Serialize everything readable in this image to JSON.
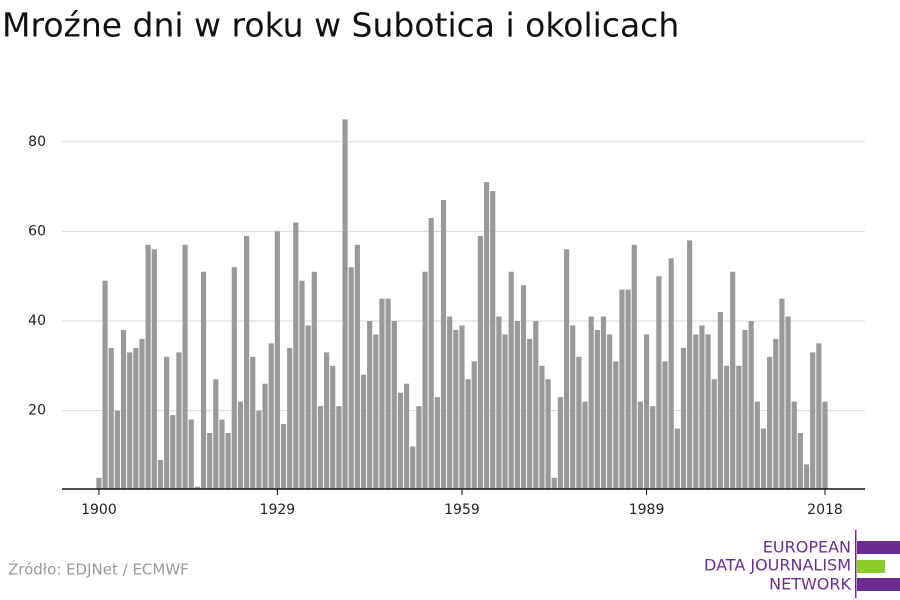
{
  "chart_data": {
    "type": "bar",
    "title": "Mroźne dni w roku w Subotica i okolicach",
    "source": "Źródło: EDJNet / ECMWF",
    "logo": [
      "EUROPEAN",
      "DATA JOURNALISM",
      "NETWORK"
    ],
    "color": "#999999",
    "x": [
      1900,
      1901,
      1902,
      1903,
      1904,
      1905,
      1906,
      1907,
      1908,
      1909,
      1910,
      1911,
      1912,
      1913,
      1914,
      1915,
      1916,
      1917,
      1918,
      1919,
      1920,
      1921,
      1922,
      1923,
      1924,
      1925,
      1926,
      1927,
      1928,
      1929,
      1930,
      1931,
      1932,
      1933,
      1934,
      1935,
      1936,
      1937,
      1938,
      1939,
      1940,
      1941,
      1942,
      1943,
      1944,
      1945,
      1946,
      1947,
      1948,
      1949,
      1950,
      1951,
      1952,
      1953,
      1954,
      1955,
      1956,
      1957,
      1958,
      1959,
      1960,
      1961,
      1962,
      1963,
      1964,
      1965,
      1966,
      1967,
      1968,
      1969,
      1970,
      1971,
      1972,
      1973,
      1974,
      1975,
      1976,
      1977,
      1978,
      1979,
      1980,
      1981,
      1982,
      1983,
      1984,
      1985,
      1986,
      1987,
      1988,
      1989,
      1990,
      1991,
      1992,
      1993,
      1994,
      1995,
      1996,
      1997,
      1998,
      1999,
      2000,
      2001,
      2002,
      2003,
      2004,
      2005,
      2006,
      2007,
      2008,
      2009,
      2010,
      2011,
      2012,
      2013,
      2014,
      2015,
      2016,
      2017,
      2018
    ],
    "values": [
      5,
      49,
      34,
      20,
      38,
      33,
      34,
      36,
      57,
      56,
      9,
      32,
      19,
      33,
      57,
      18,
      3,
      51,
      15,
      27,
      18,
      15,
      52,
      22,
      59,
      32,
      20,
      26,
      35,
      60,
      17,
      34,
      62,
      49,
      39,
      51,
      21,
      33,
      30,
      21,
      85,
      52,
      57,
      28,
      40,
      37,
      45,
      45,
      40,
      24,
      26,
      12,
      21,
      51,
      63,
      23,
      67,
      41,
      38,
      39,
      27,
      31,
      59,
      71,
      69,
      41,
      37,
      51,
      40,
      48,
      36,
      40,
      30,
      27,
      5,
      23,
      56,
      39,
      32,
      22,
      41,
      38,
      41,
      37,
      31,
      47,
      47,
      57,
      22,
      37,
      21,
      50,
      31,
      54,
      16,
      34,
      58,
      37,
      39,
      37,
      27,
      42,
      30,
      51,
      30,
      38,
      40,
      22,
      16,
      32,
      36,
      45,
      41,
      22,
      15,
      8,
      33,
      35,
      22
    ],
    "xlim": [
      1894,
      2024.5
    ],
    "xticks": [
      1900,
      1929,
      1959,
      1989,
      2018
    ],
    "ylim": [
      2.5,
      90
    ],
    "yticks": [
      20,
      40,
      60,
      80
    ],
    "grid": true
  }
}
